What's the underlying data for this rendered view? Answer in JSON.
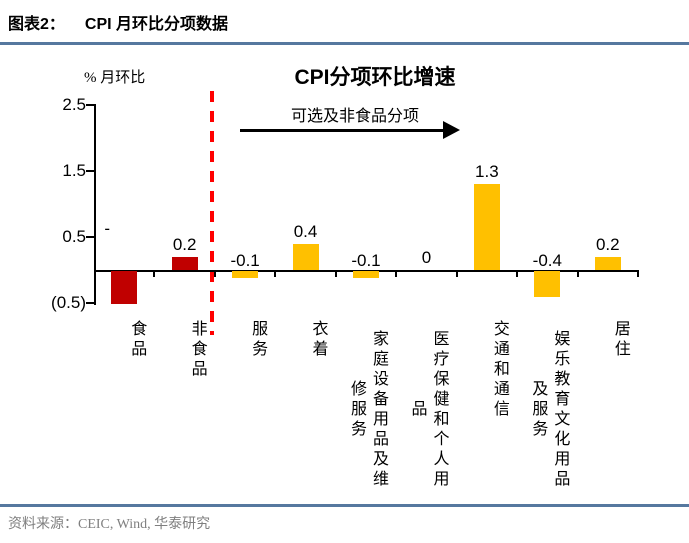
{
  "header": {
    "figure_label": "图表2：",
    "title": "CPI 月环比分项数据"
  },
  "footer": {
    "source": "资料来源：CEIC, Wind, 华泰研究"
  },
  "chart_data": {
    "type": "bar",
    "title": "CPI分项环比增速",
    "ylabel": "% 月环比",
    "annotation": "可选及非食品分项",
    "categories": [
      "食品",
      "非食品",
      "服务",
      "衣着",
      "家庭设备用品及维修服务",
      "医疗保健和个人用品",
      "交通和通信",
      "娱乐教育文化用品及服务",
      "居住"
    ],
    "category_display": [
      "食品",
      "非食品",
      "服务",
      "衣着",
      "家庭设备用品及维\n修服务",
      "医疗保健和个人用\n品",
      "交通和通信",
      "娱乐教育文化用品\n及服务",
      "居住"
    ],
    "values": [
      -0.5,
      0.2,
      -0.1,
      0.4,
      -0.1,
      0,
      1.3,
      -0.4,
      0.2
    ],
    "labels": [
      "-",
      "0.2",
      "-0.1",
      "0.4",
      "-0.1",
      "0",
      "1.3",
      "-0.4",
      "0.2"
    ],
    "bar_colors": [
      "#C00000",
      "#C00000",
      "#FFC000",
      "#FFC000",
      "#FFC000",
      "#FFC000",
      "#FFC000",
      "#FFC000",
      "#FFC000"
    ],
    "y_tick_labels": [
      "2.5",
      "1.5",
      "0.5",
      "(0.5)"
    ],
    "y_tick_values": [
      2.5,
      1.5,
      0.5,
      -0.5
    ],
    "ylim": [
      -0.5,
      2.5
    ],
    "grid": false,
    "legend": "none",
    "separator_after_category": "非食品",
    "separator_color": "#FF0000",
    "accent_rule_color": "#56789F"
  }
}
